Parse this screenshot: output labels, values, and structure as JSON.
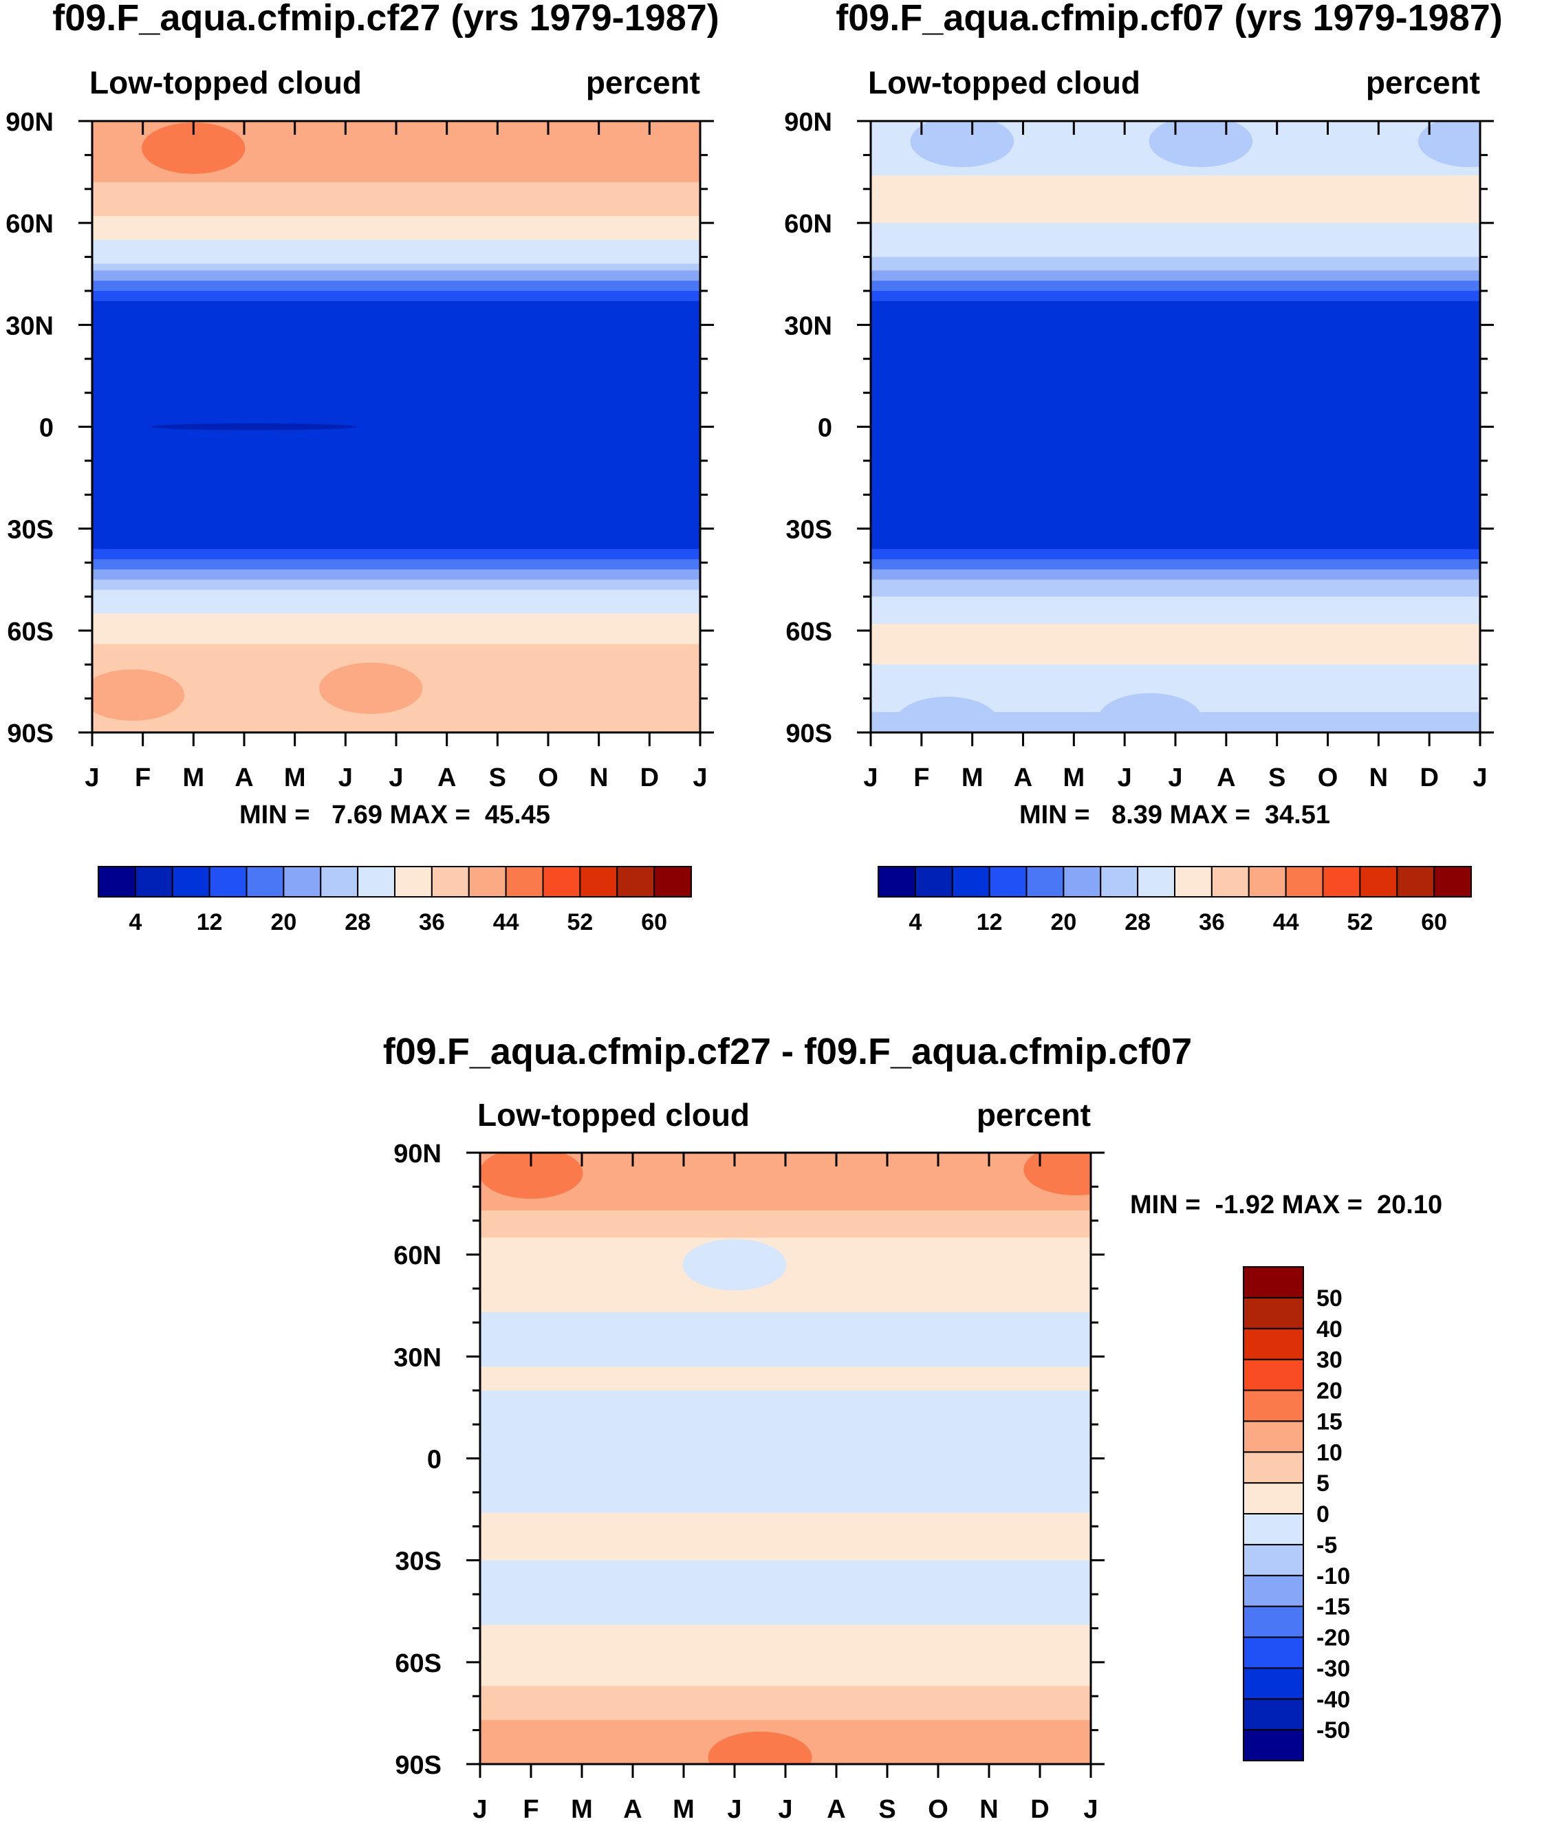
{
  "chart_data": [
    {
      "id": "p1",
      "type": "heatmap",
      "title": "f09.F_aqua.cfmip.cf27 (yrs 1979-1987)",
      "left_label": "Low-topped cloud",
      "right_label": "percent",
      "stats": "MIN =   7.69 MAX =  45.45",
      "x_ticks": [
        "J",
        "F",
        "M",
        "A",
        "M",
        "J",
        "J",
        "A",
        "S",
        "O",
        "N",
        "D",
        "J"
      ],
      "y_ticks": [
        "90N",
        "60N",
        "30N",
        "0",
        "30S",
        "60S",
        "90S"
      ],
      "ylim": [
        -90,
        90
      ],
      "colorbar": {
        "orientation": "horizontal",
        "levels": [
          4,
          8,
          12,
          16,
          20,
          24,
          28,
          32,
          36,
          40,
          44,
          48,
          52,
          56,
          60
        ],
        "labels": [
          "4",
          "12",
          "20",
          "28",
          "36",
          "44",
          "52",
          "60"
        ]
      },
      "bands": [
        {
          "lat": [
            90,
            72
          ],
          "value": 42
        },
        {
          "lat": [
            72,
            62
          ],
          "value": 38
        },
        {
          "lat": [
            62,
            55
          ],
          "value": 34
        },
        {
          "lat": [
            55,
            48
          ],
          "value": 30
        },
        {
          "lat": [
            48,
            46
          ],
          "value": 26
        },
        {
          "lat": [
            46,
            43
          ],
          "value": 22
        },
        {
          "lat": [
            43,
            40
          ],
          "value": 18
        },
        {
          "lat": [
            40,
            37
          ],
          "value": 14
        },
        {
          "lat": [
            37,
            -36
          ],
          "value": 11
        },
        {
          "lat": [
            -36,
            -39
          ],
          "value": 14
        },
        {
          "lat": [
            -39,
            -42
          ],
          "value": 18
        },
        {
          "lat": [
            -42,
            -45
          ],
          "value": 22
        },
        {
          "lat": [
            -45,
            -48
          ],
          "value": 26
        },
        {
          "lat": [
            -48,
            -55
          ],
          "value": 30
        },
        {
          "lat": [
            -55,
            -64
          ],
          "value": 34
        },
        {
          "lat": [
            -64,
            -90
          ],
          "value": 38
        }
      ],
      "blobs": [
        {
          "month": 2,
          "lat": 82,
          "value": 46
        },
        {
          "month": 8.5,
          "lat": 80,
          "value": 42
        },
        {
          "month": 0.8,
          "lat": -79,
          "value": 42
        },
        {
          "month": 5.5,
          "lat": -77,
          "value": 42
        },
        {
          "month": 3.2,
          "lat": 0,
          "value": 7
        }
      ]
    },
    {
      "id": "p2",
      "type": "heatmap",
      "title": "f09.F_aqua.cfmip.cf07 (yrs 1979-1987)",
      "left_label": "Low-topped cloud",
      "right_label": "percent",
      "stats": "MIN =   8.39 MAX =  34.51",
      "x_ticks": [
        "J",
        "F",
        "M",
        "A",
        "M",
        "J",
        "J",
        "A",
        "S",
        "O",
        "N",
        "D",
        "J"
      ],
      "y_ticks": [
        "90N",
        "60N",
        "30N",
        "0",
        "30S",
        "60S",
        "90S"
      ],
      "ylim": [
        -90,
        90
      ],
      "colorbar": {
        "orientation": "horizontal",
        "levels": [
          4,
          8,
          12,
          16,
          20,
          24,
          28,
          32,
          36,
          40,
          44,
          48,
          52,
          56,
          60
        ],
        "labels": [
          "4",
          "12",
          "20",
          "28",
          "36",
          "44",
          "52",
          "60"
        ]
      },
      "bands": [
        {
          "lat": [
            90,
            74
          ],
          "value": 30
        },
        {
          "lat": [
            74,
            60
          ],
          "value": 34
        },
        {
          "lat": [
            60,
            50
          ],
          "value": 30
        },
        {
          "lat": [
            50,
            46
          ],
          "value": 26
        },
        {
          "lat": [
            46,
            43
          ],
          "value": 22
        },
        {
          "lat": [
            43,
            40
          ],
          "value": 18
        },
        {
          "lat": [
            40,
            37
          ],
          "value": 14
        },
        {
          "lat": [
            37,
            -36
          ],
          "value": 11
        },
        {
          "lat": [
            -36,
            -39
          ],
          "value": 14
        },
        {
          "lat": [
            -39,
            -42
          ],
          "value": 18
        },
        {
          "lat": [
            -42,
            -45
          ],
          "value": 22
        },
        {
          "lat": [
            -45,
            -50
          ],
          "value": 26
        },
        {
          "lat": [
            -50,
            -58
          ],
          "value": 30
        },
        {
          "lat": [
            -58,
            -70
          ],
          "value": 34
        },
        {
          "lat": [
            -70,
            -84
          ],
          "value": 30
        },
        {
          "lat": [
            -84,
            -90
          ],
          "value": 26
        }
      ],
      "blobs": [
        {
          "month": 1.8,
          "lat": 84,
          "value": 26
        },
        {
          "month": 6.5,
          "lat": 84,
          "value": 26
        },
        {
          "month": 11.8,
          "lat": 84,
          "value": 26
        },
        {
          "month": 5.5,
          "lat": -86,
          "value": 26
        },
        {
          "month": 1.5,
          "lat": -87,
          "value": 26
        }
      ]
    },
    {
      "id": "p3",
      "type": "heatmap",
      "title": "f09.F_aqua.cfmip.cf27 - f09.F_aqua.cfmip.cf07",
      "left_label": "Low-topped cloud",
      "right_label": "percent",
      "stats": "MIN =  -1.92 MAX =  20.10",
      "x_ticks": [
        "J",
        "F",
        "M",
        "A",
        "M",
        "J",
        "J",
        "A",
        "S",
        "O",
        "N",
        "D",
        "J"
      ],
      "y_ticks": [
        "90N",
        "60N",
        "30N",
        "0",
        "30S",
        "60S",
        "90S"
      ],
      "ylim": [
        -90,
        90
      ],
      "colorbar": {
        "orientation": "vertical",
        "levels": [
          -50,
          -40,
          -30,
          -20,
          -15,
          -10,
          -5,
          0,
          5,
          10,
          15,
          20,
          30,
          40,
          50
        ],
        "labels": [
          "-50",
          "-40",
          "-30",
          "-20",
          "-15",
          "-10",
          "-5",
          "0",
          "5",
          "10",
          "15",
          "20",
          "30",
          "40",
          "50"
        ]
      },
      "bands": [
        {
          "lat": [
            90,
            73
          ],
          "value": 12
        },
        {
          "lat": [
            73,
            65
          ],
          "value": 7
        },
        {
          "lat": [
            65,
            43
          ],
          "value": 2
        },
        {
          "lat": [
            43,
            27
          ],
          "value": -2
        },
        {
          "lat": [
            27,
            20
          ],
          "value": 2
        },
        {
          "lat": [
            20,
            -16
          ],
          "value": -2
        },
        {
          "lat": [
            -16,
            -30
          ],
          "value": 2
        },
        {
          "lat": [
            -30,
            -49
          ],
          "value": -2
        },
        {
          "lat": [
            -49,
            -67
          ],
          "value": 2
        },
        {
          "lat": [
            -67,
            -77
          ],
          "value": 7
        },
        {
          "lat": [
            -77,
            -90
          ],
          "value": 12
        }
      ],
      "blobs": [
        {
          "month": 1,
          "lat": 84,
          "value": 17
        },
        {
          "month": 11.7,
          "lat": 85,
          "value": 17
        },
        {
          "month": 5.5,
          "lat": -88,
          "value": 17
        },
        {
          "month": 5,
          "lat": 57,
          "value": -2
        }
      ]
    }
  ]
}
